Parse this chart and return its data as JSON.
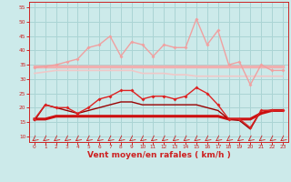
{
  "x": [
    0,
    1,
    2,
    3,
    4,
    5,
    6,
    7,
    8,
    9,
    10,
    11,
    12,
    13,
    14,
    15,
    16,
    17,
    18,
    19,
    20,
    21,
    22,
    23
  ],
  "series": [
    {
      "label": "rafales_max_light",
      "color": "#f0a0a0",
      "lw": 1.0,
      "marker": "D",
      "markersize": 2.0,
      "zorder": 3,
      "values": [
        34,
        34.5,
        35,
        36,
        37,
        41,
        42,
        45,
        38,
        43,
        42,
        38,
        42,
        41,
        41,
        51,
        42,
        47,
        35,
        36,
        28,
        35,
        33,
        33
      ]
    },
    {
      "label": "mean_upper_light",
      "color": "#f0b0b0",
      "lw": 2.5,
      "marker": null,
      "markersize": 0,
      "zorder": 2,
      "values": [
        34.5,
        34.5,
        34.5,
        34.5,
        34.5,
        34.5,
        34.5,
        34.5,
        34.5,
        34.5,
        34.5,
        34.5,
        34.5,
        34.5,
        34.5,
        34.5,
        34.5,
        34.5,
        34.5,
        34.5,
        34.5,
        34.5,
        34.5,
        34.5
      ]
    },
    {
      "label": "mean_lower_light",
      "color": "#f0c8c8",
      "lw": 1.2,
      "marker": null,
      "markersize": 0,
      "zorder": 2,
      "values": [
        32,
        32.5,
        33,
        33,
        33,
        33,
        33,
        33,
        33,
        33,
        32,
        32,
        32,
        31.5,
        31.5,
        31,
        31,
        31,
        31,
        31,
        31,
        31,
        31,
        31
      ]
    },
    {
      "label": "rafales_marked",
      "color": "#dd2222",
      "lw": 1.0,
      "marker": "D",
      "markersize": 2.0,
      "zorder": 4,
      "values": [
        16,
        21,
        20,
        20,
        18,
        20,
        23,
        24,
        26,
        26,
        23,
        24,
        24,
        23,
        24,
        27,
        25,
        21,
        16,
        16,
        13,
        19,
        19,
        19
      ]
    },
    {
      "label": "vent_moyen_thick",
      "color": "#cc1111",
      "lw": 2.2,
      "marker": null,
      "markersize": 0,
      "zorder": 3,
      "values": [
        16,
        16,
        17,
        17,
        17,
        17,
        17,
        17,
        17,
        17,
        17,
        17,
        17,
        17,
        17,
        17,
        17,
        17,
        16,
        16,
        16,
        18,
        19,
        19
      ]
    },
    {
      "label": "vent_moyen_line",
      "color": "#990000",
      "lw": 1.0,
      "marker": null,
      "markersize": 0,
      "zorder": 3,
      "values": [
        15.5,
        21,
        20,
        19,
        18,
        19,
        20,
        21,
        22,
        22,
        21,
        21,
        21,
        21,
        21,
        21,
        20,
        19,
        16,
        15.5,
        12.5,
        19,
        19,
        19
      ]
    }
  ],
  "xlabel": "Vent moyen/en rafales ( km/h )",
  "ylim": [
    8,
    57
  ],
  "xlim": [
    -0.5,
    23.5
  ],
  "yticks": [
    10,
    15,
    20,
    25,
    30,
    35,
    40,
    45,
    50,
    55
  ],
  "xticks": [
    0,
    1,
    2,
    3,
    4,
    5,
    6,
    7,
    8,
    9,
    10,
    11,
    12,
    13,
    14,
    15,
    16,
    17,
    18,
    19,
    20,
    21,
    22,
    23
  ],
  "bg_color": "#cceaea",
  "grid_color": "#aad4d4",
  "tick_color": "#cc2222",
  "label_color": "#cc2222",
  "arrow_color": "#cc2222"
}
